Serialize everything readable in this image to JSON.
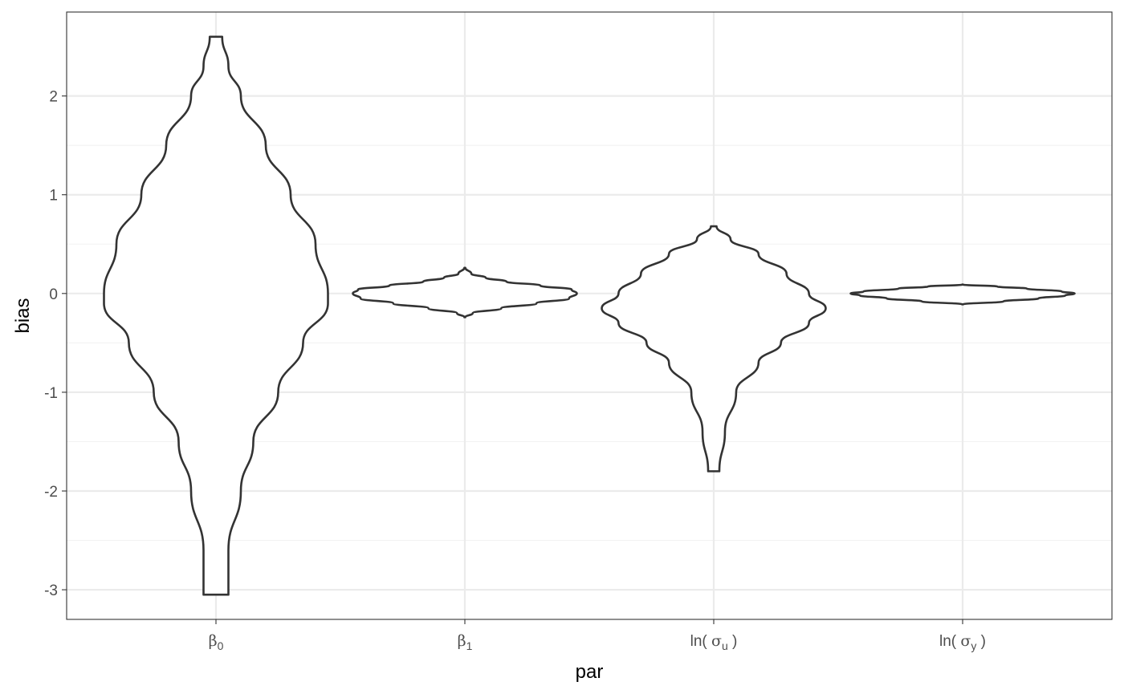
{
  "chart_data": {
    "type": "violin",
    "xlabel": "par",
    "ylabel": "bias",
    "ylim": [
      -3.3,
      2.85
    ],
    "yticks": [
      -3,
      -2,
      -1,
      0,
      1,
      2
    ],
    "grid": true,
    "legend": "none",
    "colors": {
      "outline": "#333333",
      "fill": "#ffffff",
      "grid": "#ebebeb",
      "tick_text": "#4d4d4d"
    },
    "categories": [
      {
        "base": "β",
        "sub": "0",
        "paren": false
      },
      {
        "base": "β",
        "sub": "1",
        "paren": false
      },
      {
        "base": "σ",
        "sub": "u",
        "paren": true
      },
      {
        "base": "σ",
        "sub": "y",
        "paren": true
      }
    ],
    "series": [
      {
        "min": -3.05,
        "max": 2.6,
        "profile": [
          [
            -3.05,
            0.01
          ],
          [
            -2.6,
            0.01
          ],
          [
            -2.0,
            0.02
          ],
          [
            -1.5,
            0.03
          ],
          [
            -1.0,
            0.05
          ],
          [
            -0.5,
            0.07
          ],
          [
            -0.1,
            0.09
          ],
          [
            0.0,
            0.09
          ],
          [
            0.5,
            0.08
          ],
          [
            1.0,
            0.06
          ],
          [
            1.5,
            0.04
          ],
          [
            2.0,
            0.02
          ],
          [
            2.3,
            0.01
          ],
          [
            2.6,
            0.005
          ]
        ]
      },
      {
        "min": -0.24,
        "max": 0.26,
        "profile": [
          [
            -0.24,
            0.0
          ],
          [
            -0.2,
            0.06
          ],
          [
            -0.15,
            0.28
          ],
          [
            -0.1,
            0.55
          ],
          [
            -0.05,
            0.8
          ],
          [
            0.0,
            0.86
          ],
          [
            0.04,
            0.82
          ],
          [
            0.08,
            0.58
          ],
          [
            0.12,
            0.32
          ],
          [
            0.16,
            0.16
          ],
          [
            0.2,
            0.05
          ],
          [
            0.26,
            0.0
          ]
        ]
      },
      {
        "min": -1.8,
        "max": 0.68,
        "profile": [
          [
            -1.8,
            0.01
          ],
          [
            -1.4,
            0.02
          ],
          [
            -1.0,
            0.04
          ],
          [
            -0.7,
            0.08
          ],
          [
            -0.5,
            0.12
          ],
          [
            -0.3,
            0.17
          ],
          [
            -0.15,
            0.2
          ],
          [
            0.0,
            0.17
          ],
          [
            0.2,
            0.13
          ],
          [
            0.4,
            0.08
          ],
          [
            0.55,
            0.03
          ],
          [
            0.68,
            0.005
          ]
        ]
      },
      {
        "min": -0.11,
        "max": 0.09,
        "profile": [
          [
            -0.11,
            0.0
          ],
          [
            -0.08,
            0.35
          ],
          [
            -0.05,
            0.65
          ],
          [
            -0.02,
            0.88
          ],
          [
            0.0,
            0.96
          ],
          [
            0.02,
            0.85
          ],
          [
            0.05,
            0.55
          ],
          [
            0.07,
            0.3
          ],
          [
            0.09,
            0.0
          ]
        ]
      }
    ]
  }
}
